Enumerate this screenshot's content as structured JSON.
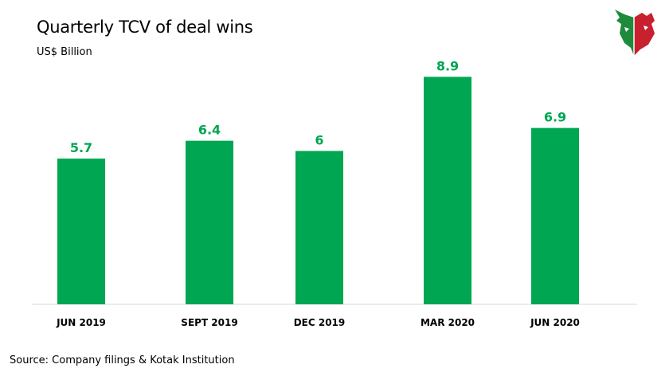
{
  "header": {
    "title": "Quarterly TCV of deal wins",
    "subtitle": "US$ Billion"
  },
  "footer": {
    "source": "Source: Company filings & Kotak Institution"
  },
  "logo": {
    "icon": "bull-bear-icon",
    "colors": {
      "green": "#1e8a3c",
      "red": "#c8202e"
    }
  },
  "chart_data": {
    "type": "bar",
    "title": "Quarterly TCV of deal wins",
    "ylabel": "US$ Billion",
    "categories": [
      "JUN 2019",
      "SEPT 2019",
      "DEC 2019",
      "MAR 2020",
      "JUN 2020"
    ],
    "values": [
      5.7,
      6.4,
      6,
      8.9,
      6.9
    ],
    "data_labels": [
      "5.7",
      "6.4",
      "6",
      "8.9",
      "6.9"
    ],
    "ylim": [
      0,
      9.6
    ],
    "grid": false,
    "legend": "none",
    "bar_color": "#00a651",
    "label_color": "#00a651"
  }
}
